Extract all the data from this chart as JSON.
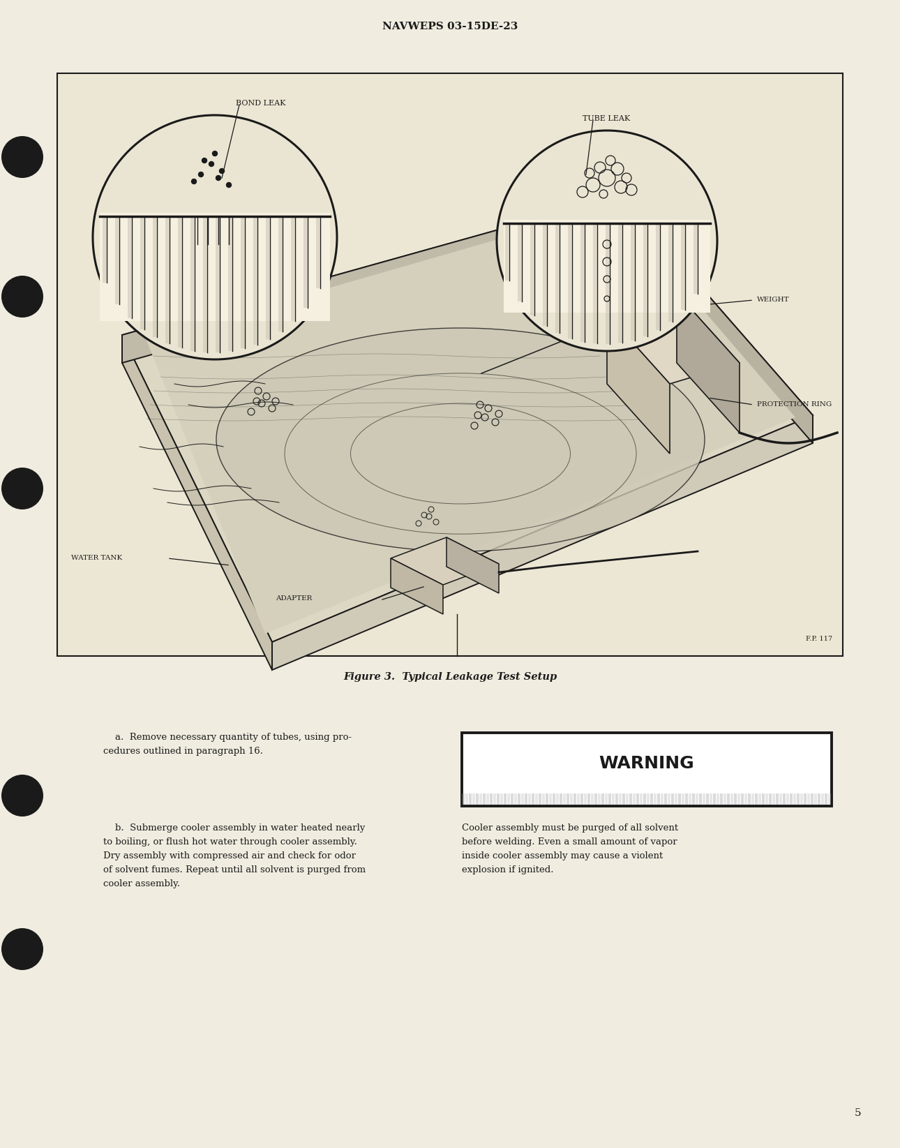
{
  "page_bg": "#f0ece0",
  "header_text": "NAVWEPS 03-15DE-23",
  "figure_caption": "Figure 3.  Typical Leakage Test Setup",
  "figure_ref": "F.P. 117",
  "page_number": "5",
  "text_para_a": "    a.  Remove necessary quantity of tubes, using pro-\ncedures outlined in paragraph 16.",
  "text_para_b": "    b.  Submerge cooler assembly in water heated nearly\nto boiling, or flush hot water through cooler assembly.\nDry assembly with compressed air and check for odor\nof solvent fumes. Repeat until all solvent is purged from\ncooler assembly.",
  "warning_title": "WARNING",
  "warning_body": "Cooler assembly must be purged of all solvent\nbefore welding. Even a small amount of vapor\ninside cooler assembly may cause a violent\nexpl osion if ignited.",
  "text_color": "#1c1c1c",
  "dark": "#1a1a1a",
  "fig_fill": "#e8e3d0",
  "fig_fill2": "#ddd8c4",
  "fig_fill3": "#ccc8b8"
}
